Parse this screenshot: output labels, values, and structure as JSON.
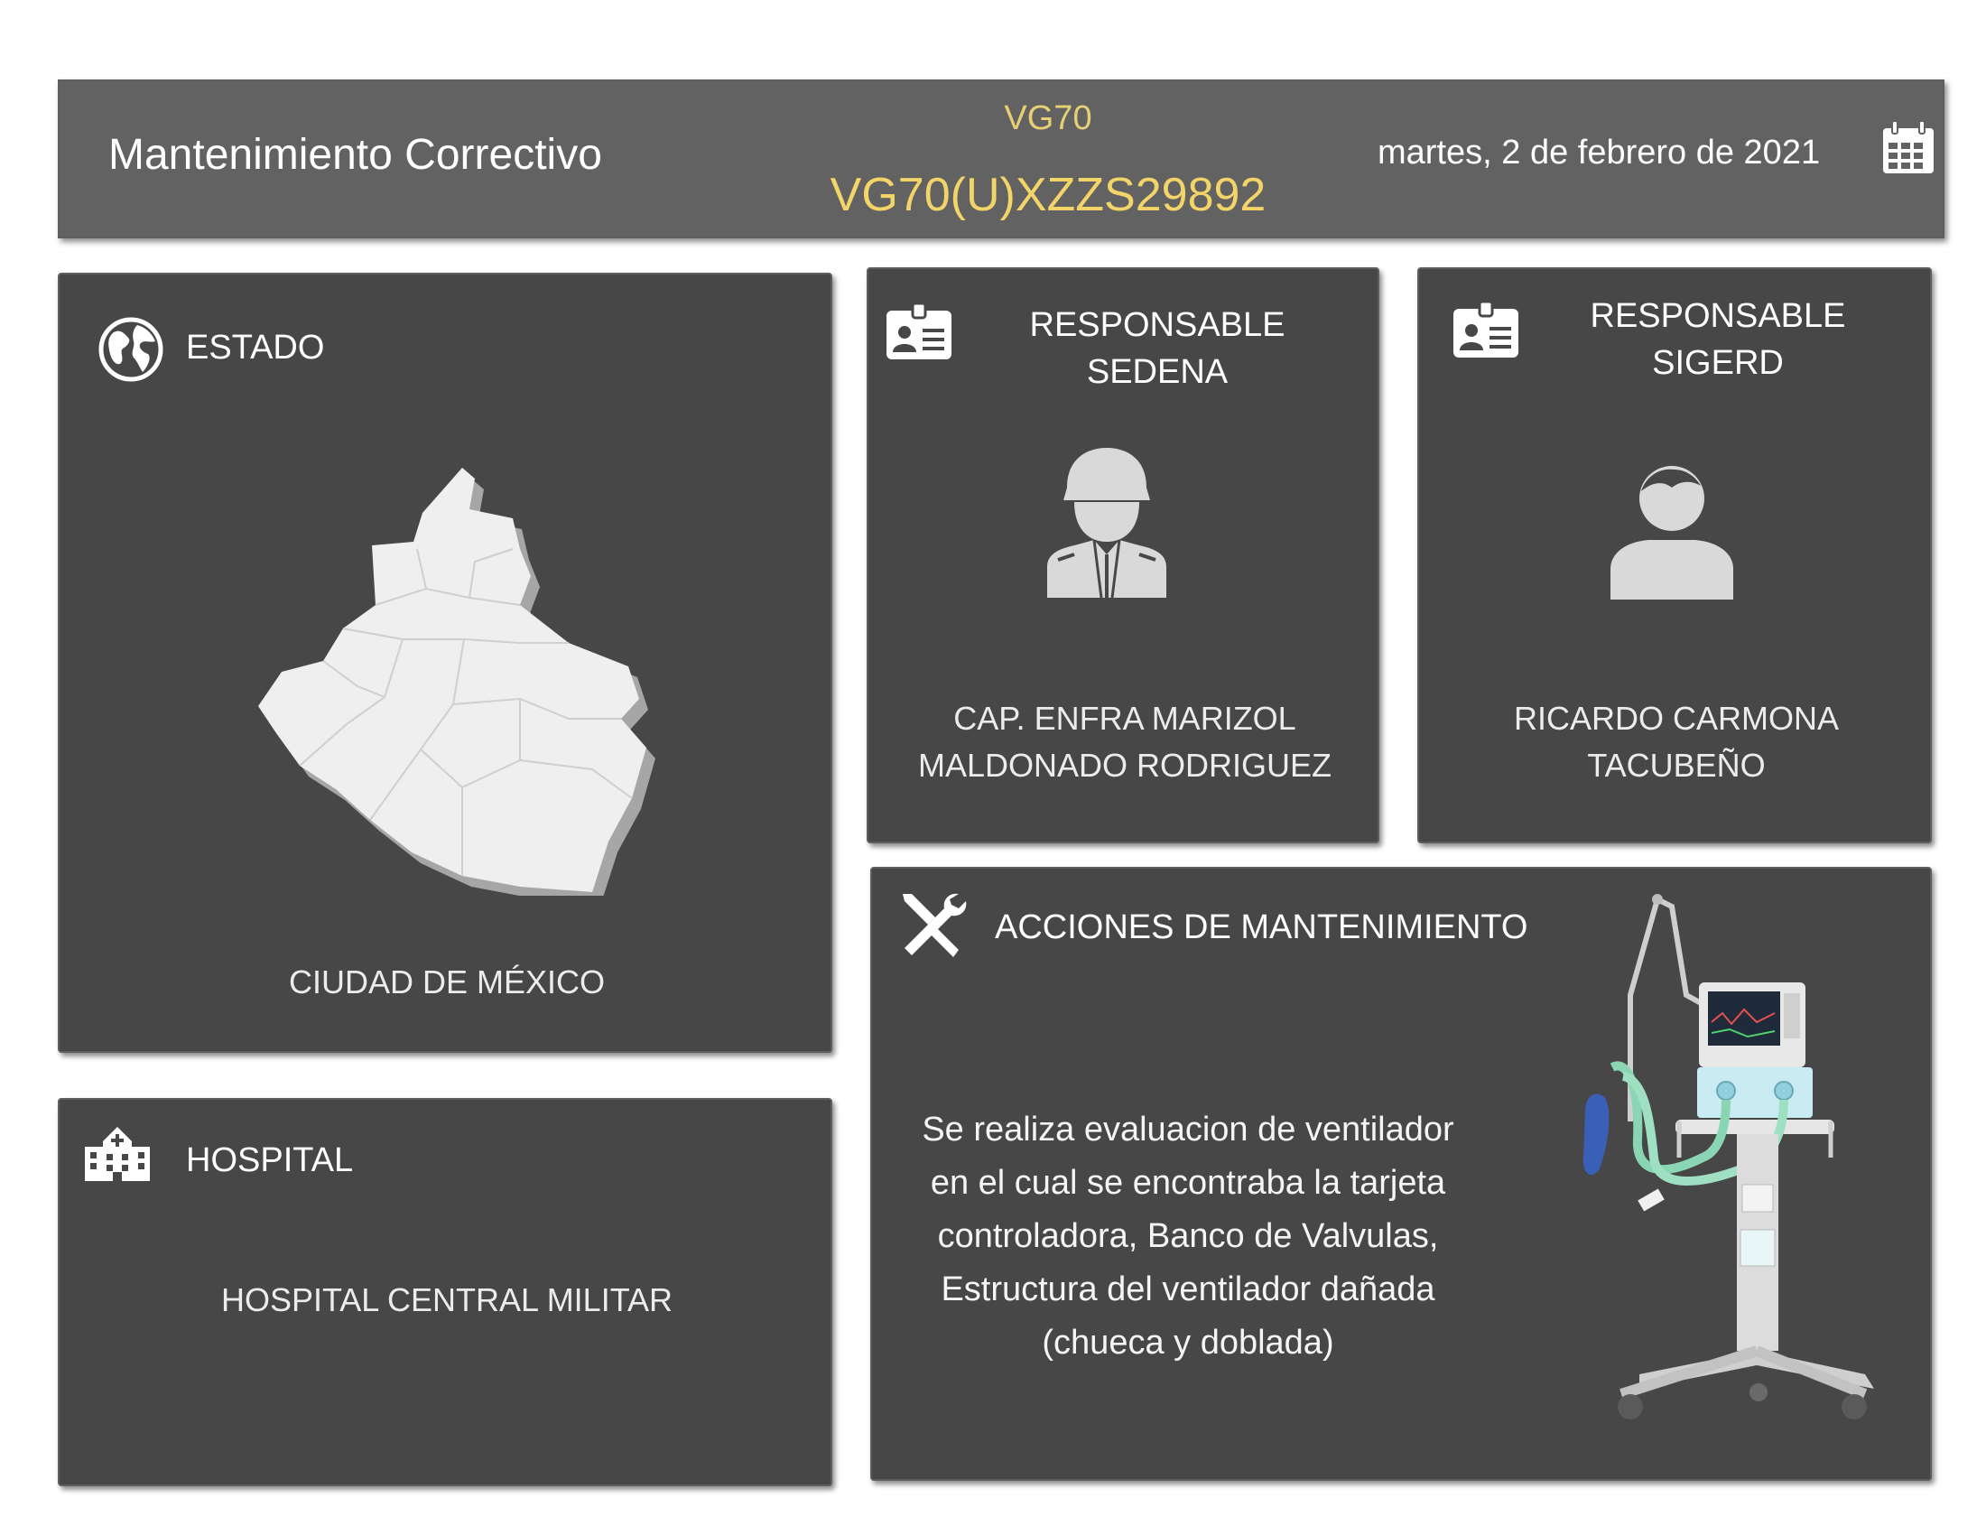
{
  "header": {
    "title": "Mantenimiento Correctivo",
    "model": "VG70",
    "serial": "VG70(U)XZZS29892",
    "date": "martes, 2 de febrero de 2021",
    "icon": "calendar-icon"
  },
  "estado": {
    "title": "ESTADO",
    "icon": "globe-icon",
    "value": "CIUDAD DE MÉXICO"
  },
  "hospital": {
    "title": "HOSPITAL",
    "icon": "hospital-icon",
    "value": "HOSPITAL CENTRAL MILITAR"
  },
  "responsable_sedena": {
    "title_line1": "RESPONSABLE",
    "title_line2": "SEDENA",
    "icon": "id-card-icon",
    "avatar": "soldier-icon",
    "name_line1": "CAP. ENFRA MARIZOL",
    "name_line2": "MALDONADO RODRIGUEZ"
  },
  "responsable_sigerd": {
    "title_line1": "RESPONSABLE",
    "title_line2": "SIGERD",
    "icon": "id-card-icon",
    "avatar": "person-icon",
    "name_line1": "RICARDO CARMONA",
    "name_line2": "TACUBEÑO"
  },
  "acciones": {
    "title": "ACCIONES DE MANTENIMIENTO",
    "icon": "tools-icon",
    "lines": [
      "Se realiza evaluacion de ventilador",
      "en el cual se encontraba la tarjeta",
      "controladora, Banco de Valvulas,",
      "Estructura del ventilador dañada",
      "(chueca y doblada)"
    ],
    "image": "ventilator-image"
  },
  "colors": {
    "panel": "#474747",
    "header": "#626262",
    "accent": "#f3d469"
  }
}
